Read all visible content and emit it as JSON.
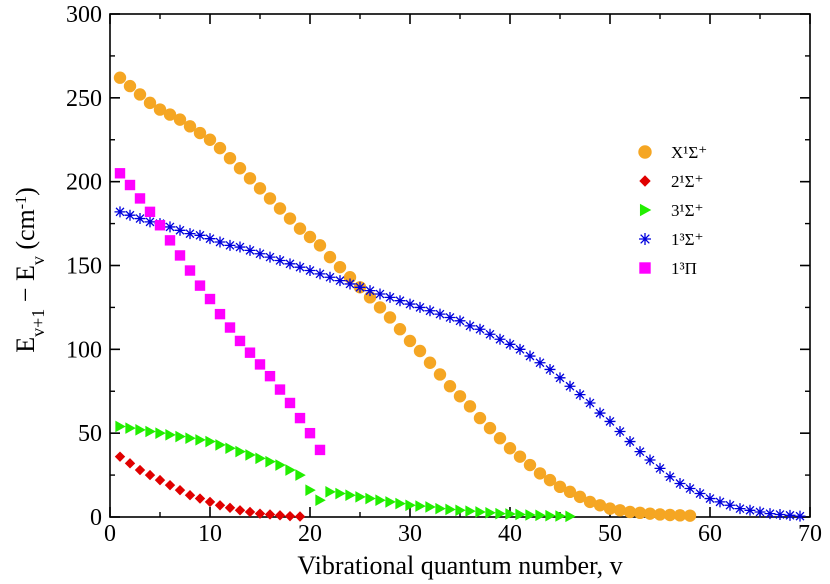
{
  "chart_data": {
    "type": "scatter",
    "xlabel": "Vibrational quantum number, v",
    "ylabel": "E_{v+1} − E_v (cm^{-1})",
    "xlim": [
      0,
      70
    ],
    "ylim": [
      0,
      300
    ],
    "xticks": [
      0,
      10,
      20,
      30,
      40,
      50,
      60,
      70
    ],
    "yticks": [
      0,
      50,
      100,
      150,
      200,
      250,
      300
    ],
    "legend_position": "right",
    "series": [
      {
        "name": "X¹Σ⁺",
        "marker": "circle",
        "color": "#f5a623",
        "x": [
          1,
          2,
          3,
          4,
          5,
          6,
          7,
          8,
          9,
          10,
          11,
          12,
          13,
          14,
          15,
          16,
          17,
          18,
          19,
          20,
          21,
          22,
          23,
          24,
          25,
          26,
          27,
          28,
          29,
          30,
          31,
          32,
          33,
          34,
          35,
          36,
          37,
          38,
          39,
          40,
          41,
          42,
          43,
          44,
          45,
          46,
          47,
          48,
          49,
          50,
          51,
          52,
          53,
          54,
          55,
          56,
          57,
          58
        ],
        "y": [
          262,
          257,
          252,
          247,
          243,
          240,
          237,
          233,
          229,
          225,
          220,
          214,
          208,
          202,
          196,
          190,
          184,
          178,
          172,
          167,
          162,
          155,
          149,
          143,
          137,
          131,
          125,
          119,
          112,
          105,
          99,
          92,
          85,
          78,
          72,
          66,
          59,
          53,
          47,
          41,
          36,
          31,
          26,
          22,
          18,
          15,
          12,
          9,
          7,
          5,
          4,
          3,
          2.5,
          2,
          1.5,
          1.2,
          1,
          0.8
        ]
      },
      {
        "name": "2¹Σ⁺",
        "marker": "diamond",
        "color": "#e00000",
        "x": [
          1,
          2,
          3,
          4,
          5,
          6,
          7,
          8,
          9,
          10,
          11,
          12,
          13,
          14,
          15,
          16,
          17,
          18,
          19
        ],
        "y": [
          36,
          32,
          28,
          25,
          22,
          19,
          16,
          13,
          11,
          9,
          7,
          5.5,
          4,
          3,
          2,
          1.5,
          1,
          0.5,
          0.3
        ]
      },
      {
        "name": "3¹Σ⁺",
        "marker": "triangle-right",
        "color": "#22ee00",
        "x": [
          1,
          2,
          3,
          4,
          5,
          6,
          7,
          8,
          9,
          10,
          11,
          12,
          13,
          14,
          15,
          16,
          17,
          18,
          19,
          20,
          21,
          22,
          23,
          24,
          25,
          26,
          27,
          28,
          29,
          30,
          31,
          32,
          33,
          34,
          35,
          36,
          37,
          38,
          39,
          40,
          41,
          42,
          43,
          44,
          45,
          46
        ],
        "y": [
          54,
          53,
          52,
          51,
          50,
          49,
          48,
          47,
          46,
          45,
          43,
          41,
          39,
          37,
          35,
          33,
          31,
          28,
          25,
          16,
          10,
          15,
          14,
          13,
          12,
          11,
          10,
          9,
          8,
          7,
          6.5,
          6,
          5,
          4.5,
          4,
          3.5,
          3,
          2.5,
          2,
          1.8,
          1.5,
          1.2,
          1,
          0.8,
          0.6,
          0.4
        ]
      },
      {
        "name": "1³Σ⁺",
        "marker": "star",
        "color": "#0000dd",
        "x": [
          1,
          2,
          3,
          4,
          5,
          6,
          7,
          8,
          9,
          10,
          11,
          12,
          13,
          14,
          15,
          16,
          17,
          18,
          19,
          20,
          21,
          22,
          23,
          24,
          25,
          26,
          27,
          28,
          29,
          30,
          31,
          32,
          33,
          34,
          35,
          36,
          37,
          38,
          39,
          40,
          41,
          42,
          43,
          44,
          45,
          46,
          47,
          48,
          49,
          50,
          51,
          52,
          53,
          54,
          55,
          56,
          57,
          58,
          59,
          60,
          61,
          62,
          63,
          64,
          65,
          66,
          67,
          68,
          69
        ],
        "y": [
          182,
          180,
          178,
          176,
          175,
          173,
          171,
          169,
          168,
          166,
          164,
          162,
          161,
          159,
          157,
          155,
          153,
          151,
          149,
          147,
          145,
          143,
          141,
          139,
          137,
          135,
          133,
          131,
          129,
          127,
          125,
          123,
          121,
          119,
          117,
          114,
          112,
          109,
          106,
          103,
          100,
          96,
          92,
          88,
          83,
          78,
          73,
          68,
          62,
          57,
          51,
          45,
          39,
          34,
          29,
          24,
          20,
          17,
          14,
          11,
          9,
          7,
          5,
          4,
          3,
          2,
          1.5,
          1,
          0.5
        ]
      },
      {
        "name": "1³Π",
        "marker": "square",
        "color": "#ff00ff",
        "x": [
          1,
          2,
          3,
          4,
          5,
          6,
          7,
          8,
          9,
          10,
          11,
          12,
          13,
          14,
          15,
          16,
          17,
          18,
          19,
          20,
          21
        ],
        "y": [
          205,
          198,
          190,
          182,
          174,
          165,
          156,
          147,
          138,
          130,
          121,
          113,
          105,
          98,
          91,
          84,
          76,
          68,
          59,
          50,
          40
        ]
      }
    ]
  }
}
